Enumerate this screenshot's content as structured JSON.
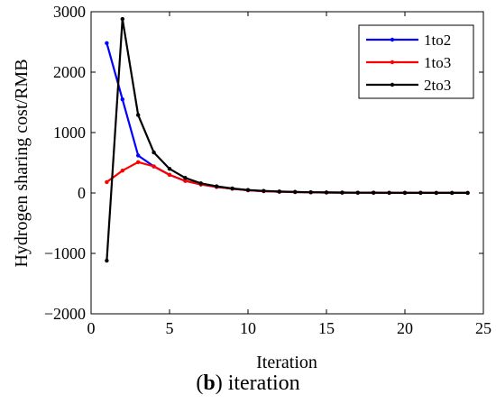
{
  "chart_data": {
    "type": "line",
    "title": "",
    "xlabel": "Iteration",
    "ylabel": "Hydrogen sharing cost/RMB",
    "xlim": [
      0,
      25
    ],
    "ylim": [
      -2000,
      3000
    ],
    "xticks": [
      0,
      5,
      10,
      15,
      20,
      25
    ],
    "yticks": [
      -2000,
      -1000,
      0,
      1000,
      2000,
      3000
    ],
    "grid": false,
    "legend_position": "top-right",
    "x": [
      1,
      2,
      3,
      4,
      5,
      6,
      7,
      8,
      9,
      10,
      11,
      12,
      13,
      14,
      15,
      16,
      17,
      18,
      19,
      20,
      21,
      22,
      23,
      24
    ],
    "series": [
      {
        "name": "1to2",
        "color": "#0000ff",
        "values": [
          2480,
          1550,
          620,
          440,
          300,
          200,
          140,
          100,
          70,
          45,
          30,
          20,
          15,
          10,
          8,
          6,
          5,
          4,
          3,
          2,
          2,
          1,
          1,
          1
        ]
      },
      {
        "name": "1to3",
        "color": "#ff0000",
        "values": [
          180,
          370,
          510,
          440,
          300,
          200,
          140,
          100,
          70,
          45,
          30,
          20,
          15,
          10,
          8,
          6,
          5,
          4,
          3,
          2,
          2,
          1,
          1,
          1
        ]
      },
      {
        "name": "2to3",
        "color": "#000000",
        "values": [
          -1120,
          2880,
          1290,
          670,
          400,
          250,
          160,
          110,
          75,
          50,
          35,
          25,
          18,
          12,
          9,
          7,
          5,
          4,
          3,
          2,
          2,
          1,
          1,
          1
        ]
      }
    ]
  },
  "caption": {
    "bold": "b",
    "text": "iteration"
  }
}
